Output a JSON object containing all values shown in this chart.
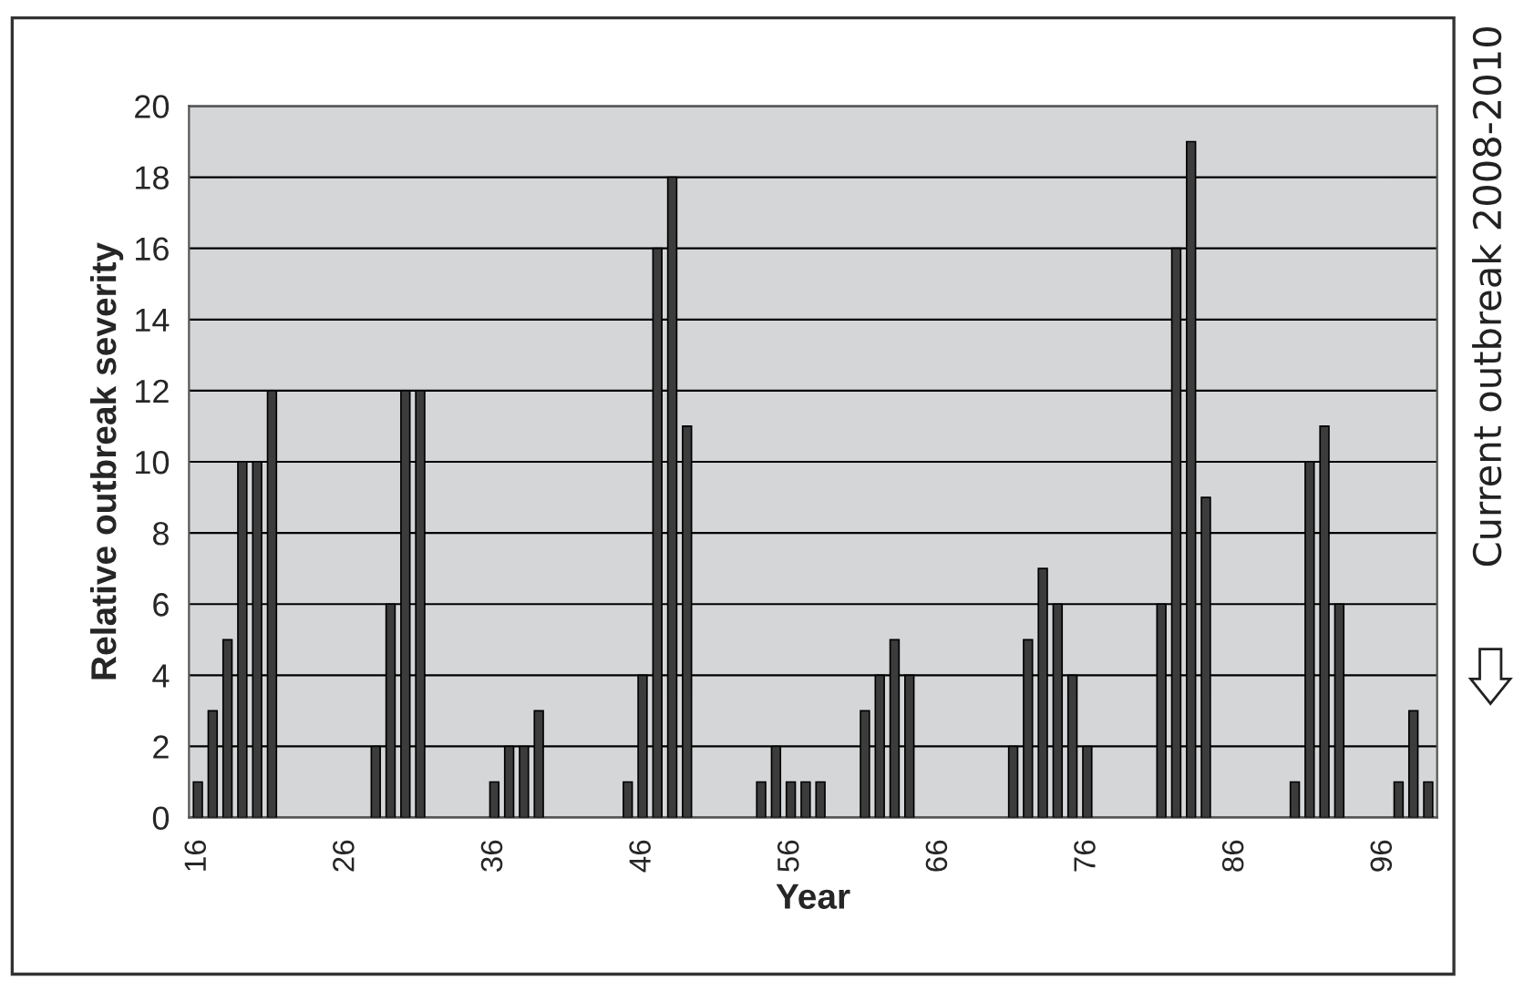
{
  "chart_data": {
    "type": "bar",
    "xlabel": "Year",
    "ylabel": "Relative outbreak severity",
    "categories": [
      "16",
      null,
      null,
      null,
      null,
      null,
      null,
      null,
      null,
      null,
      "26",
      null,
      null,
      null,
      null,
      null,
      null,
      null,
      null,
      null,
      "36",
      null,
      null,
      null,
      null,
      null,
      null,
      null,
      null,
      null,
      "46",
      null,
      null,
      null,
      null,
      null,
      null,
      null,
      null,
      null,
      "56",
      null,
      null,
      null,
      null,
      null,
      null,
      null,
      null,
      null,
      "66",
      null,
      null,
      null,
      null,
      null,
      null,
      null,
      null,
      null,
      "76",
      null,
      null,
      null,
      null,
      null,
      null,
      null,
      null,
      null,
      "86",
      null,
      null,
      null,
      null,
      null,
      null,
      null,
      null,
      null,
      "96",
      null,
      null,
      null
    ],
    "values": [
      1,
      3,
      5,
      10,
      10,
      12,
      0,
      0,
      0,
      0,
      0,
      0,
      2,
      6,
      12,
      12,
      0,
      0,
      0,
      0,
      1,
      2,
      2,
      3,
      0,
      0,
      0,
      0,
      0,
      1,
      4,
      16,
      18,
      11,
      0,
      0,
      0,
      0,
      1,
      2,
      1,
      1,
      1,
      0,
      0,
      3,
      4,
      5,
      4,
      0,
      0,
      0,
      0,
      0,
      0,
      2,
      5,
      7,
      6,
      4,
      2,
      0,
      0,
      0,
      0,
      6,
      16,
      19,
      9,
      0,
      0,
      0,
      0,
      0,
      1,
      10,
      11,
      6,
      0,
      0,
      0,
      1,
      3,
      1
    ],
    "color": "#3c3c3c",
    "ylim": [
      0,
      20
    ],
    "yticks": [
      0,
      2,
      4,
      6,
      8,
      10,
      12,
      14,
      16,
      18,
      20
    ],
    "grid": "y",
    "legend": false,
    "annotations": [
      "Current outbreak 2008-2010"
    ]
  }
}
